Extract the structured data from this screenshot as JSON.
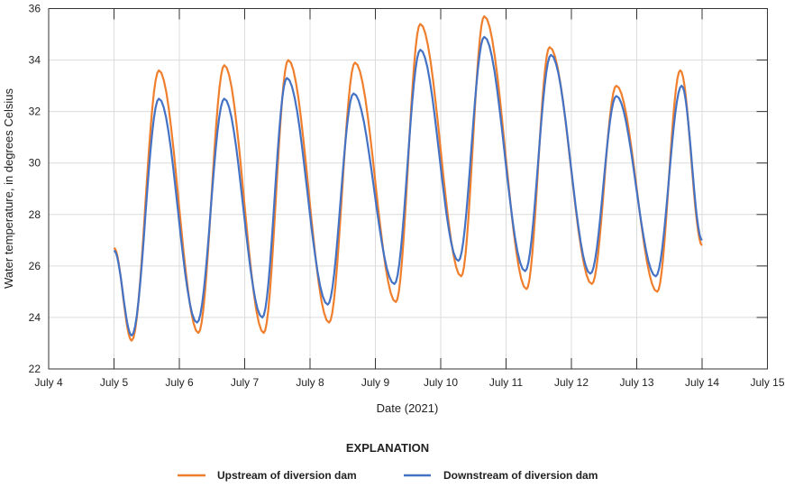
{
  "chart_data": {
    "type": "line",
    "title": "",
    "xlabel": "Date (2021)",
    "ylabel": "Water temperature, in degrees Celsius",
    "xlim": [
      "2021-07-04",
      "2021-07-15"
    ],
    "ylim": [
      22,
      36
    ],
    "x_ticks": [
      "July 4",
      "July 5",
      "July 6",
      "July 7",
      "July 8",
      "July 9",
      "July 10",
      "July 11",
      "July 12",
      "July 13",
      "July 14",
      "July 15"
    ],
    "y_ticks": [
      22,
      24,
      26,
      28,
      30,
      32,
      34,
      36
    ],
    "grid": true,
    "legend_title": "EXPLANATION",
    "legend_placement": "bottom",
    "series": [
      {
        "name": "Upstream of diversion dam",
        "color": "#F07F2D",
        "points": [
          [
            "2021-07-05T00:00",
            26.7
          ],
          [
            "2021-07-05T06:30",
            23.1
          ],
          [
            "2021-07-05T16:30",
            33.6
          ],
          [
            "2021-07-06T07:00",
            23.4
          ],
          [
            "2021-07-06T16:30",
            33.8
          ],
          [
            "2021-07-07T07:00",
            23.4
          ],
          [
            "2021-07-07T16:00",
            34.0
          ],
          [
            "2021-07-08T07:00",
            23.8
          ],
          [
            "2021-07-08T16:30",
            33.9
          ],
          [
            "2021-07-09T07:30",
            24.6
          ],
          [
            "2021-07-09T16:30",
            35.4
          ],
          [
            "2021-07-10T07:30",
            25.6
          ],
          [
            "2021-07-10T16:00",
            35.7
          ],
          [
            "2021-07-11T07:30",
            25.1
          ],
          [
            "2021-07-11T16:00",
            34.5
          ],
          [
            "2021-07-12T07:30",
            25.3
          ],
          [
            "2021-07-12T16:30",
            33.0
          ],
          [
            "2021-07-13T07:30",
            25.0
          ],
          [
            "2021-07-13T16:00",
            33.6
          ],
          [
            "2021-07-14T00:00",
            26.8
          ]
        ]
      },
      {
        "name": "Downstream of diversion dam",
        "color": "#4472C4",
        "points": [
          [
            "2021-07-05T00:00",
            26.6
          ],
          [
            "2021-07-05T06:30",
            23.3
          ],
          [
            "2021-07-05T16:30",
            32.5
          ],
          [
            "2021-07-06T06:30",
            23.8
          ],
          [
            "2021-07-06T16:30",
            32.5
          ],
          [
            "2021-07-07T06:30",
            24.0
          ],
          [
            "2021-07-07T15:30",
            33.3
          ],
          [
            "2021-07-08T06:30",
            24.5
          ],
          [
            "2021-07-08T16:00",
            32.7
          ],
          [
            "2021-07-09T07:00",
            25.3
          ],
          [
            "2021-07-09T16:30",
            34.4
          ],
          [
            "2021-07-10T06:30",
            26.2
          ],
          [
            "2021-07-10T16:00",
            34.9
          ],
          [
            "2021-07-11T07:00",
            25.8
          ],
          [
            "2021-07-11T16:30",
            34.2
          ],
          [
            "2021-07-12T07:00",
            25.7
          ],
          [
            "2021-07-12T16:30",
            32.6
          ],
          [
            "2021-07-13T07:00",
            25.6
          ],
          [
            "2021-07-13T16:30",
            33.0
          ],
          [
            "2021-07-14T00:00",
            27.0
          ]
        ]
      }
    ]
  }
}
